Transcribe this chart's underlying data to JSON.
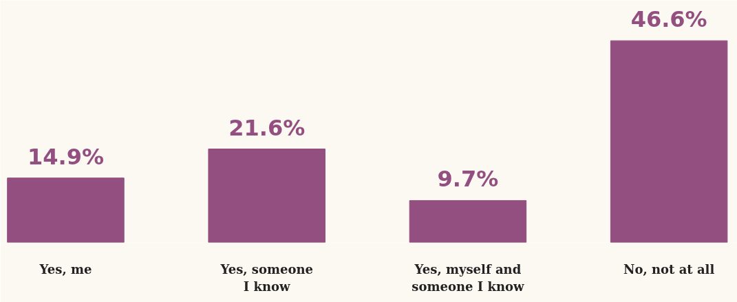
{
  "chart_data": {
    "type": "bar",
    "categories": [
      "Yes, me",
      "Yes, someone I know",
      "Yes, myself and someone I know",
      "No, not at all"
    ],
    "values": [
      14.9,
      21.6,
      9.7,
      46.6
    ],
    "value_labels": [
      "14.9%",
      "21.6%",
      "9.7%",
      "46.6%"
    ],
    "color": "#934f80",
    "grid": false,
    "tick_labels": "x"
  }
}
